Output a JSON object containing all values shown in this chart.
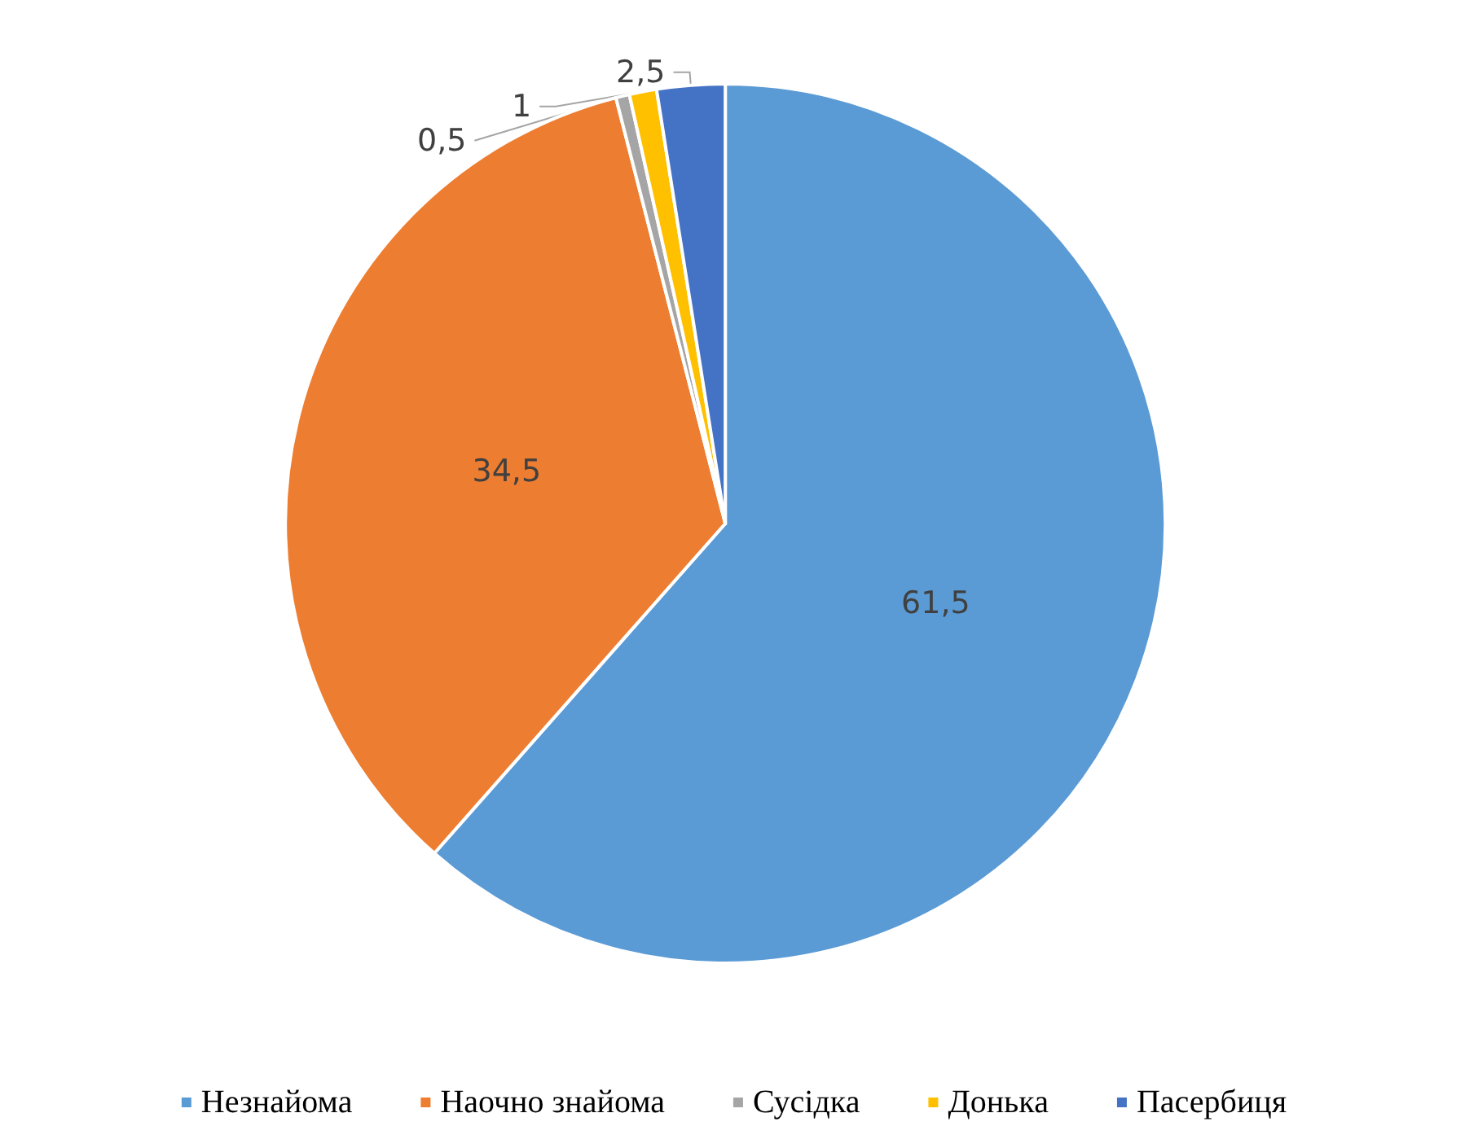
{
  "chart_data": {
    "type": "pie",
    "categories": [
      "Незнайома",
      "Наочно знайома",
      "Сусідка",
      "Донька",
      "Пасербиця"
    ],
    "values": [
      61.5,
      34.5,
      0.5,
      1,
      2.5
    ],
    "value_labels": [
      "61,5",
      "34,5",
      "0,5",
      "1",
      "2,5"
    ],
    "colors": [
      "#5b9bd5",
      "#ed7d31",
      "#a5a5a5",
      "#ffc000",
      "#4472c4"
    ],
    "legend": "bottom"
  }
}
